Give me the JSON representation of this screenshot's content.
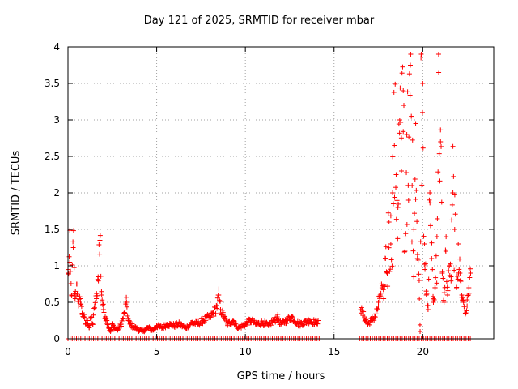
{
  "chart_data": {
    "type": "scatter",
    "title": "Day 121 of 2025, SRMTID for receiver mbar",
    "xlabel": "GPS time / hours",
    "ylabel": "SRMTID / TECUs",
    "xlim": [
      0,
      24
    ],
    "ylim": [
      0,
      4
    ],
    "xticks": [
      0,
      5,
      10,
      15,
      20
    ],
    "xtick_labels": [
      "0",
      "5",
      "10",
      "15",
      "20"
    ],
    "yticks": [
      0,
      0.5,
      1,
      1.5,
      2,
      2.5,
      3,
      3.5,
      4
    ],
    "ytick_labels": [
      "0",
      "0.5",
      "1",
      "1.5",
      "2",
      "2.5",
      "3",
      "3.5",
      "4"
    ],
    "grid": true,
    "marker": "+",
    "color": "#ff0000",
    "data_gap_hours": [
      14.2,
      16.4
    ],
    "series": [
      {
        "name": "SRMTID",
        "x": [
          0.0,
          0.1,
          0.2,
          0.3,
          0.4,
          0.5,
          0.6,
          0.7,
          0.8,
          0.9,
          1.0,
          1.1,
          1.2,
          1.3,
          1.4,
          1.5,
          1.6,
          1.7,
          1.8,
          1.9,
          2.0,
          2.1,
          2.2,
          2.3,
          2.4,
          2.5,
          2.6,
          2.8,
          3.0,
          3.2,
          3.3,
          3.4,
          3.5,
          3.6,
          3.8,
          4.0,
          4.2,
          4.5,
          4.8,
          5.0,
          5.3,
          5.6,
          6.0,
          6.3,
          6.6,
          7.0,
          7.3,
          7.6,
          8.0,
          8.2,
          8.4,
          8.5,
          8.6,
          8.8,
          9.0,
          9.3,
          9.6,
          10.0,
          10.3,
          10.6,
          11.0,
          11.3,
          11.6,
          11.8,
          12.0,
          12.3,
          12.6,
          13.0,
          13.3,
          13.6,
          14.0,
          14.1,
          16.5,
          16.7,
          16.9,
          17.1,
          17.3,
          17.5,
          17.6,
          17.7,
          17.8,
          17.9,
          18.0,
          18.1,
          18.2,
          18.3,
          18.4,
          18.5,
          18.6,
          18.7,
          18.8,
          18.9,
          19.0,
          19.1,
          19.2,
          19.3,
          19.4,
          19.5,
          19.6,
          19.7,
          19.8,
          19.85,
          19.9,
          20.0,
          20.1,
          20.2,
          20.3,
          20.4,
          20.5,
          20.6,
          20.7,
          20.8,
          20.9,
          21.0,
          21.1,
          21.2,
          21.3,
          21.4,
          21.5,
          21.6,
          21.7,
          21.8,
          21.9,
          22.0,
          22.1,
          22.2,
          22.3,
          22.4,
          22.5,
          22.6,
          22.7
        ],
        "y": [
          0.9,
          1.05,
          0.6,
          1.25,
          0.55,
          0.75,
          0.45,
          0.55,
          0.35,
          0.3,
          0.2,
          0.25,
          0.15,
          0.3,
          0.2,
          0.45,
          0.55,
          0.85,
          1.35,
          0.6,
          0.4,
          0.3,
          0.25,
          0.15,
          0.1,
          0.2,
          0.15,
          0.12,
          0.2,
          0.35,
          0.5,
          0.25,
          0.2,
          0.18,
          0.15,
          0.12,
          0.1,
          0.15,
          0.12,
          0.18,
          0.15,
          0.2,
          0.18,
          0.2,
          0.15,
          0.22,
          0.2,
          0.25,
          0.3,
          0.35,
          0.45,
          0.6,
          0.4,
          0.3,
          0.2,
          0.25,
          0.15,
          0.2,
          0.25,
          0.2,
          0.22,
          0.18,
          0.25,
          0.3,
          0.2,
          0.25,
          0.3,
          0.2,
          0.22,
          0.25,
          0.22,
          0.25,
          0.4,
          0.3,
          0.2,
          0.25,
          0.3,
          0.45,
          0.6,
          0.7,
          0.55,
          1.1,
          0.9,
          1.6,
          1.3,
          2.0,
          2.65,
          2.25,
          1.8,
          3.0,
          2.3,
          3.4,
          1.2,
          2.8,
          1.9,
          3.75,
          2.1,
          1.5,
          2.95,
          1.1,
          0.8,
          0.1,
          3.85,
          3.5,
          1.3,
          0.6,
          0.4,
          2.0,
          1.1,
          0.5,
          0.7,
          1.4,
          3.65,
          2.7,
          0.9,
          0.5,
          1.2,
          0.6,
          1.0,
          0.85,
          2.0,
          1.5,
          0.7,
          1.3,
          0.9,
          0.6,
          0.5,
          0.35,
          0.45,
          0.7,
          0.9
        ]
      }
    ],
    "zero_markers": "row of markers along y = 0 wherever data is present"
  }
}
